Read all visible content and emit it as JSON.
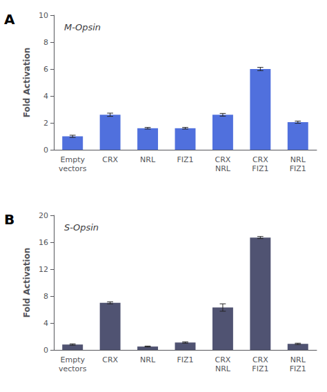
{
  "chart_data": [
    {
      "type": "bar",
      "title": "M-Opsin",
      "ylabel": "Fold Activation",
      "annotations": [
        "A"
      ],
      "categories": [
        "Empty\nvectors",
        "CRX",
        "NRL",
        "FIZ1",
        "CRX\nNRL",
        "CRX\nFIZ1",
        "NRL\nFIZ1"
      ],
      "values": [
        1.0,
        2.6,
        1.6,
        1.6,
        2.6,
        6.0,
        2.05
      ],
      "errors": [
        0.08,
        0.12,
        0.06,
        0.06,
        0.1,
        0.12,
        0.08
      ],
      "ylim": [
        0,
        10
      ],
      "yticks": [
        0,
        2,
        4,
        6,
        8,
        10
      ],
      "grid": false
    },
    {
      "type": "bar",
      "title": "S-Opsin",
      "ylabel": "Fold Activation",
      "annotations": [
        "B"
      ],
      "categories": [
        "Empty\nvectors",
        "CRX",
        "NRL",
        "FIZ1",
        "CRX\nNRL",
        "CRX\nFIZ1",
        "NRL\nFIZ1"
      ],
      "values": [
        0.8,
        7.0,
        0.5,
        1.1,
        6.3,
        16.7,
        0.9
      ],
      "errors": [
        0.1,
        0.15,
        0.07,
        0.1,
        0.55,
        0.15,
        0.1
      ],
      "ylim": [
        0,
        20
      ],
      "yticks": [
        0,
        4,
        8,
        12,
        16,
        20
      ],
      "grid": false
    }
  ]
}
